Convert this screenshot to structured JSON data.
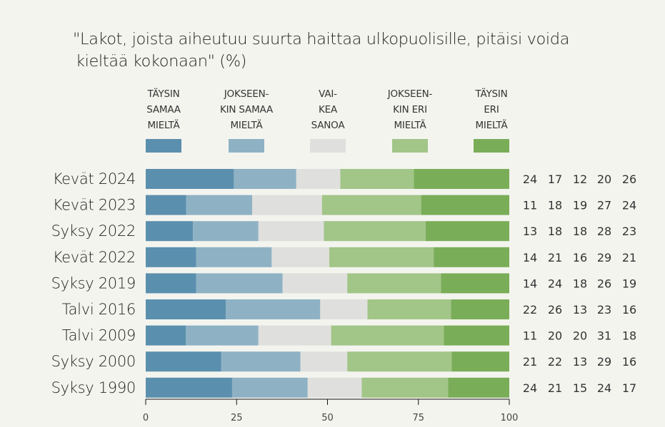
{
  "chart_data": {
    "type": "bar",
    "orientation": "horizontal",
    "stacked": true,
    "title_lines": [
      "\"Lakot, joista aiheutuu suurta haittaa ulkopuolisille, pitäisi voida",
      "kieltää kokonaan\" (%)"
    ],
    "xlabel": "",
    "ylabel": "",
    "xlim": [
      0,
      100
    ],
    "x_ticks": [
      0,
      25,
      50,
      75,
      100
    ],
    "grid": false,
    "legend_position": "top",
    "categories": [
      "Kevät 2024",
      "Kevät 2023",
      "Syksy 2022",
      "Kevät 2022",
      "Syksy 2019",
      "Talvi 2016",
      "Talvi 2009",
      "Syksy 2000",
      "Syksy 1990"
    ],
    "series": [
      {
        "name": "TÄYSIN SAMAA MIELTÄ",
        "label_lines": [
          "TÄYSIN",
          "SAMAA",
          "MIELTÄ"
        ],
        "color": "#5b8fae",
        "values": [
          24,
          11,
          13,
          14,
          14,
          22,
          11,
          21,
          24
        ]
      },
      {
        "name": "JOKSEEN-KIN SAMAA MIELTÄ",
        "label_lines": [
          "JOKSEEN-",
          "KIN SAMAA",
          "MIELTÄ"
        ],
        "color": "#8eb2c4",
        "values": [
          17,
          18,
          18,
          21,
          24,
          26,
          20,
          22,
          21
        ]
      },
      {
        "name": "VAI-KEA SANOA",
        "label_lines": [
          "VAI-",
          "KEA",
          "SANOA"
        ],
        "color": "#dfdfdd",
        "values": [
          12,
          19,
          18,
          16,
          18,
          13,
          20,
          13,
          15
        ]
      },
      {
        "name": "JOKSEEN-KIN ERI MIELTÄ",
        "label_lines": [
          "JOKSEEN-",
          "KIN ERI",
          "MIELTÄ"
        ],
        "color": "#a2c588",
        "values": [
          20,
          27,
          28,
          29,
          26,
          23,
          31,
          29,
          24
        ]
      },
      {
        "name": "TÄYSIN ERI MIELTÄ",
        "label_lines": [
          "TÄYSIN",
          "ERI",
          "MIELTÄ"
        ],
        "color": "#7aad58",
        "values": [
          26,
          24,
          23,
          21,
          19,
          16,
          18,
          16,
          17
        ]
      }
    ]
  }
}
